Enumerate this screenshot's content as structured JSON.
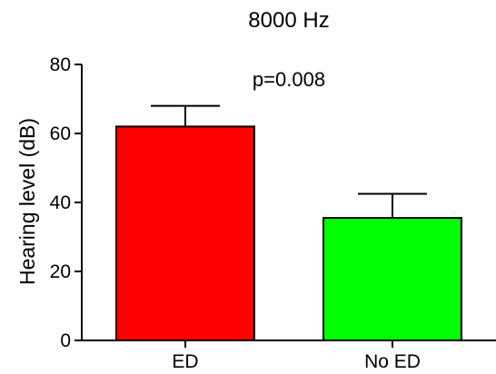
{
  "chart_data": {
    "type": "bar",
    "title": "8000 Hz",
    "xlabel": "",
    "ylabel": "Hearing level (dB)",
    "categories": [
      "ED",
      "No ED"
    ],
    "values": [
      62,
      35.5
    ],
    "error_upper": [
      68,
      42.5
    ],
    "ylim": [
      0,
      80
    ],
    "yticks": [
      0,
      20,
      40,
      60,
      80
    ],
    "annotation": "p=0.008",
    "bar_colors": [
      "#ff0000",
      "#00ff00"
    ],
    "grid": false,
    "legend": "none"
  }
}
